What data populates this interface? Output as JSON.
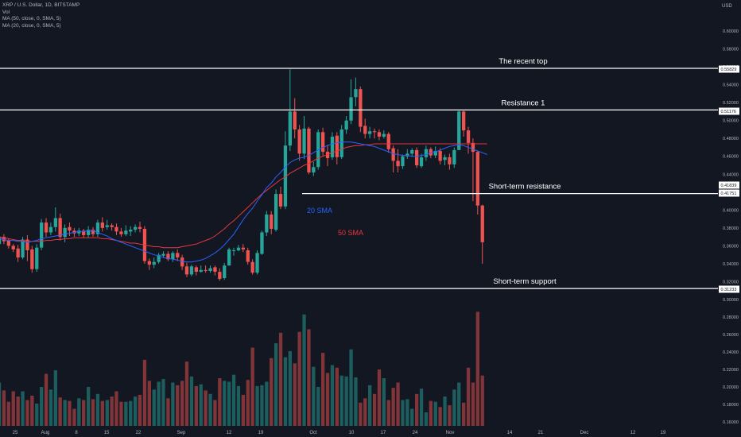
{
  "header": {
    "symbol_line": "XRP / U.S. Dollar, 1D, BITSTAMP",
    "vol_label": "Vol",
    "ma50_label": "MA (50, close, 0, SMA, 5)",
    "ma20_label": "MA (20, close, 0, SMA, 5)"
  },
  "colors": {
    "background": "#131722",
    "up": "#26a69a",
    "down": "#ef5350",
    "volume_up": "#26a69a",
    "volume_down": "#ef5350",
    "sma20": "#2962ff",
    "sma50": "#e8363f",
    "levels": "#ffffff",
    "axis_text": "#b2b5be",
    "label_box": "#ffffff"
  },
  "chart_data": {
    "type": "candlestick",
    "currency": "USD",
    "y_axis_ticks": [
      "0.60000",
      "0.58000",
      "0.56000",
      "0.54000",
      "0.52000",
      "0.50000",
      "0.48000",
      "0.46000",
      "0.44000",
      "0.42000",
      "0.40000",
      "0.38000",
      "0.36000",
      "0.34000",
      "0.32000",
      "0.30000"
    ],
    "volume_axis_ticks": [
      "0.28000",
      "0.26000",
      "0.24000",
      "0.22000",
      "0.20000",
      "0.18000",
      "0.16000"
    ],
    "x_axis_ticks": [
      "25",
      "Aug",
      "8",
      "15",
      "22",
      "Sep",
      "12",
      "19",
      "Oct",
      "10",
      "17",
      "24",
      "Nov",
      "14",
      "21",
      "Dec",
      "12",
      "19"
    ],
    "price_labels": [
      "0.55829",
      "0.51176",
      "0.41839",
      "0.41751",
      "0.31233"
    ],
    "levels": [
      {
        "label": "The recent top",
        "value": 0.55829
      },
      {
        "label": "Resistance 1",
        "value": 0.51176
      },
      {
        "label": "Short-term resistance",
        "value": 0.41839
      },
      {
        "label": "Short-term support",
        "value": 0.31233
      }
    ],
    "sma_labels": [
      {
        "label": "20 SMA",
        "color": "#2962ff"
      },
      {
        "label": "50 SMA",
        "color": "#e8363f"
      }
    ],
    "candles": [
      [
        0.362,
        0.37,
        0.356,
        0.351
      ],
      [
        0.37,
        0.365,
        0.373,
        0.362
      ],
      [
        0.366,
        0.36,
        0.368,
        0.357
      ],
      [
        0.36,
        0.356,
        0.362,
        0.353
      ],
      [
        0.357,
        0.347,
        0.361,
        0.342
      ],
      [
        0.347,
        0.367,
        0.37,
        0.345
      ],
      [
        0.367,
        0.355,
        0.372,
        0.343
      ],
      [
        0.356,
        0.334,
        0.36,
        0.33
      ],
      [
        0.334,
        0.358,
        0.362,
        0.331
      ],
      [
        0.358,
        0.386,
        0.39,
        0.355
      ],
      [
        0.386,
        0.375,
        0.391,
        0.37
      ],
      [
        0.375,
        0.381,
        0.386,
        0.372
      ],
      [
        0.381,
        0.391,
        0.403,
        0.376
      ],
      [
        0.391,
        0.37,
        0.396,
        0.366
      ],
      [
        0.37,
        0.38,
        0.384,
        0.364
      ],
      [
        0.381,
        0.377,
        0.386,
        0.371
      ],
      [
        0.377,
        0.374,
        0.38,
        0.37
      ],
      [
        0.374,
        0.377,
        0.38,
        0.371
      ],
      [
        0.377,
        0.372,
        0.379,
        0.369
      ],
      [
        0.372,
        0.378,
        0.382,
        0.369
      ],
      [
        0.378,
        0.373,
        0.381,
        0.37
      ],
      [
        0.373,
        0.386,
        0.389,
        0.37
      ],
      [
        0.386,
        0.38,
        0.392,
        0.376
      ],
      [
        0.381,
        0.383,
        0.389,
        0.378
      ],
      [
        0.383,
        0.381,
        0.385,
        0.377
      ],
      [
        0.381,
        0.376,
        0.385,
        0.372
      ],
      [
        0.376,
        0.373,
        0.38,
        0.37
      ],
      [
        0.373,
        0.377,
        0.383,
        0.371
      ],
      [
        0.376,
        0.378,
        0.382,
        0.371
      ],
      [
        0.378,
        0.381,
        0.384,
        0.375
      ],
      [
        0.381,
        0.379,
        0.387,
        0.375
      ],
      [
        0.379,
        0.343,
        0.382,
        0.34
      ],
      [
        0.343,
        0.339,
        0.346,
        0.333
      ],
      [
        0.339,
        0.342,
        0.347,
        0.335
      ],
      [
        0.342,
        0.35,
        0.352,
        0.34
      ],
      [
        0.349,
        0.351,
        0.354,
        0.347
      ],
      [
        0.351,
        0.345,
        0.354,
        0.343
      ],
      [
        0.345,
        0.352,
        0.354,
        0.342
      ],
      [
        0.352,
        0.347,
        0.356,
        0.343
      ],
      [
        0.347,
        0.337,
        0.35,
        0.333
      ],
      [
        0.337,
        0.328,
        0.341,
        0.325
      ],
      [
        0.328,
        0.337,
        0.339,
        0.326
      ],
      [
        0.336,
        0.331,
        0.338,
        0.327
      ],
      [
        0.331,
        0.333,
        0.338,
        0.33
      ],
      [
        0.333,
        0.332,
        0.338,
        0.33
      ],
      [
        0.332,
        0.335,
        0.338,
        0.33
      ],
      [
        0.336,
        0.331,
        0.338,
        0.327
      ],
      [
        0.331,
        0.323,
        0.335,
        0.321
      ],
      [
        0.324,
        0.338,
        0.341,
        0.322
      ],
      [
        0.338,
        0.356,
        0.358,
        0.338
      ],
      [
        0.355,
        0.355,
        0.358,
        0.349
      ],
      [
        0.355,
        0.358,
        0.361,
        0.354
      ],
      [
        0.358,
        0.356,
        0.362,
        0.353
      ],
      [
        0.355,
        0.342,
        0.358,
        0.339
      ],
      [
        0.342,
        0.33,
        0.345,
        0.328
      ],
      [
        0.33,
        0.352,
        0.355,
        0.328
      ],
      [
        0.351,
        0.375,
        0.377,
        0.35
      ],
      [
        0.375,
        0.395,
        0.399,
        0.371
      ],
      [
        0.395,
        0.379,
        0.399,
        0.373
      ],
      [
        0.378,
        0.418,
        0.423,
        0.376
      ],
      [
        0.418,
        0.404,
        0.426,
        0.401
      ],
      [
        0.404,
        0.472,
        0.488,
        0.401
      ],
      [
        0.472,
        0.51,
        0.557,
        0.466
      ],
      [
        0.51,
        0.49,
        0.525,
        0.48
      ],
      [
        0.49,
        0.463,
        0.495,
        0.455
      ],
      [
        0.463,
        0.491,
        0.505,
        0.457
      ],
      [
        0.491,
        0.442,
        0.493,
        0.44
      ],
      [
        0.442,
        0.448,
        0.454,
        0.438
      ],
      [
        0.448,
        0.487,
        0.49,
        0.445
      ],
      [
        0.487,
        0.465,
        0.492,
        0.46
      ],
      [
        0.465,
        0.458,
        0.473,
        0.449
      ],
      [
        0.459,
        0.482,
        0.487,
        0.456
      ],
      [
        0.483,
        0.459,
        0.487,
        0.451
      ],
      [
        0.459,
        0.49,
        0.495,
        0.457
      ],
      [
        0.49,
        0.5,
        0.505,
        0.485
      ],
      [
        0.5,
        0.526,
        0.546,
        0.496
      ],
      [
        0.526,
        0.535,
        0.548,
        0.516
      ],
      [
        0.535,
        0.493,
        0.538,
        0.487
      ],
      [
        0.494,
        0.485,
        0.502,
        0.48
      ],
      [
        0.485,
        0.488,
        0.493,
        0.48
      ],
      [
        0.488,
        0.487,
        0.491,
        0.48
      ],
      [
        0.487,
        0.482,
        0.49,
        0.478
      ],
      [
        0.482,
        0.485,
        0.489,
        0.48
      ],
      [
        0.485,
        0.468,
        0.487,
        0.464
      ],
      [
        0.469,
        0.455,
        0.472,
        0.442
      ],
      [
        0.455,
        0.449,
        0.468,
        0.442
      ],
      [
        0.449,
        0.46,
        0.462,
        0.446
      ],
      [
        0.46,
        0.463,
        0.468,
        0.457
      ],
      [
        0.463,
        0.467,
        0.469,
        0.46
      ],
      [
        0.467,
        0.45,
        0.47,
        0.447
      ],
      [
        0.449,
        0.459,
        0.463,
        0.447
      ],
      [
        0.459,
        0.468,
        0.472,
        0.455
      ],
      [
        0.468,
        0.461,
        0.47,
        0.458
      ],
      [
        0.461,
        0.466,
        0.471,
        0.458
      ],
      [
        0.466,
        0.455,
        0.469,
        0.451
      ],
      [
        0.456,
        0.459,
        0.462,
        0.45
      ],
      [
        0.459,
        0.451,
        0.463,
        0.445
      ],
      [
        0.451,
        0.467,
        0.47,
        0.447
      ],
      [
        0.467,
        0.51,
        0.511,
        0.467
      ],
      [
        0.51,
        0.489,
        0.511,
        0.482
      ],
      [
        0.489,
        0.475,
        0.493,
        0.463
      ],
      [
        0.475,
        0.465,
        0.48,
        0.41
      ],
      [
        0.465,
        0.405,
        0.466,
        0.395
      ],
      [
        0.405,
        0.364,
        0.406,
        0.34
      ]
    ],
    "volume": [
      0.205,
      0.196,
      0.183,
      0.195,
      0.189,
      0.195,
      0.185,
      0.19,
      0.181,
      0.2,
      0.215,
      0.197,
      0.219,
      0.188,
      0.185,
      0.184,
      0.175,
      0.187,
      0.185,
      0.2,
      0.186,
      0.192,
      0.184,
      0.185,
      0.189,
      0.195,
      0.183,
      0.183,
      0.184,
      0.189,
      0.191,
      0.231,
      0.207,
      0.197,
      0.206,
      0.209,
      0.187,
      0.205,
      0.202,
      0.207,
      0.229,
      0.212,
      0.201,
      0.203,
      0.196,
      0.192,
      0.185,
      0.21,
      0.207,
      0.206,
      0.214,
      0.201,
      0.191,
      0.208,
      0.245,
      0.201,
      0.202,
      0.206,
      0.233,
      0.25,
      0.262,
      0.234,
      0.241,
      0.227,
      0.263,
      0.283,
      0.266,
      0.223,
      0.2,
      0.239,
      0.216,
      0.225,
      0.222,
      0.213,
      0.212,
      0.243,
      0.211,
      0.182,
      0.187,
      0.202,
      0.192,
      0.22,
      0.21,
      0.185,
      0.199,
      0.205,
      0.185,
      0.186,
      0.175,
      0.192,
      0.198,
      0.171,
      0.184,
      0.183,
      0.177,
      0.189,
      0.179,
      0.197,
      0.205,
      0.182,
      0.222,
      0.205,
      0.286,
      0.213
    ],
    "sma20": [
      0.368,
      0.367,
      0.366,
      0.366,
      0.365,
      0.365,
      0.364,
      0.365,
      0.366,
      0.368,
      0.369,
      0.37,
      0.371,
      0.372,
      0.373,
      0.374,
      0.375,
      0.376,
      0.376,
      0.377,
      0.377,
      0.375,
      0.373,
      0.371,
      0.368,
      0.366,
      0.364,
      0.362,
      0.36,
      0.358,
      0.356,
      0.354,
      0.352,
      0.35,
      0.349,
      0.347,
      0.346,
      0.345,
      0.344,
      0.343,
      0.342,
      0.342,
      0.343,
      0.344,
      0.346,
      0.349,
      0.352,
      0.356,
      0.361,
      0.367,
      0.373,
      0.381,
      0.389,
      0.396,
      0.402,
      0.41,
      0.417,
      0.425,
      0.43,
      0.437,
      0.442,
      0.448,
      0.453,
      0.456,
      0.458,
      0.459,
      0.461,
      0.464,
      0.467,
      0.47,
      0.472,
      0.474,
      0.475,
      0.476,
      0.476,
      0.476,
      0.475,
      0.474,
      0.473,
      0.472,
      0.471,
      0.469,
      0.467,
      0.465,
      0.463,
      0.462,
      0.461,
      0.461,
      0.46,
      0.46,
      0.461,
      0.462,
      0.464,
      0.465,
      0.467,
      0.469,
      0.471,
      0.472,
      0.473,
      0.472,
      0.47,
      0.468,
      0.466,
      0.464,
      0.462
    ],
    "sma50": [
      0.37,
      0.369,
      0.368,
      0.367,
      0.366,
      0.366,
      0.365,
      0.365,
      0.365,
      0.365,
      0.366,
      0.366,
      0.367,
      0.367,
      0.368,
      0.368,
      0.369,
      0.369,
      0.369,
      0.369,
      0.369,
      0.369,
      0.368,
      0.368,
      0.367,
      0.366,
      0.365,
      0.364,
      0.363,
      0.363,
      0.362,
      0.361,
      0.36,
      0.359,
      0.359,
      0.358,
      0.358,
      0.358,
      0.358,
      0.359,
      0.36,
      0.361,
      0.362,
      0.364,
      0.366,
      0.368,
      0.371,
      0.375,
      0.379,
      0.384,
      0.388,
      0.393,
      0.398,
      0.403,
      0.408,
      0.413,
      0.418,
      0.422,
      0.426,
      0.43,
      0.434,
      0.437,
      0.441,
      0.444,
      0.447,
      0.45,
      0.452,
      0.455,
      0.458,
      0.46,
      0.462,
      0.464,
      0.466,
      0.468,
      0.47,
      0.471,
      0.472,
      0.472,
      0.473,
      0.473,
      0.474,
      0.474,
      0.474,
      0.474,
      0.474,
      0.474,
      0.474,
      0.474,
      0.474,
      0.474,
      0.474,
      0.474,
      0.474,
      0.474,
      0.474,
      0.474,
      0.474,
      0.474,
      0.474,
      0.474,
      0.474,
      0.474,
      0.474,
      0.474,
      0.474
    ]
  }
}
